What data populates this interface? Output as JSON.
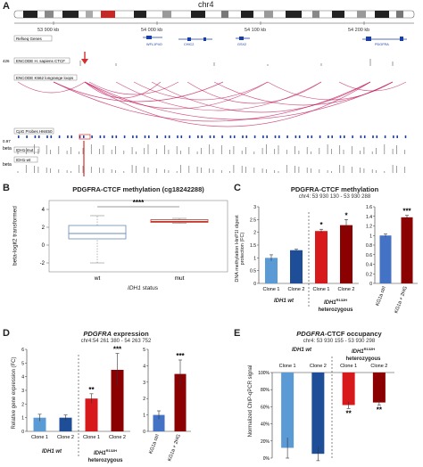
{
  "panel_a": {
    "letter": "A",
    "chromosome": "chr4",
    "coords": [
      "53 900 kb",
      "54 000 kb",
      "54 100 kb",
      "54 200 kb"
    ],
    "tracks": {
      "refseq": "Refseq Genes",
      "ctcf": "ENCODE H. sapiens CTCF",
      "loops": "ENCODE K562 longrange loops",
      "cpg": "CpG Probes HM450",
      "beta1": "beta",
      "idh1mut": "IDH1-mut",
      "beta2": "beta",
      "idh1wt": "IDH1-wt"
    },
    "scale_top": "426",
    "scale_beta": "0.97",
    "genes": [
      "WFL1P4O",
      "CHIC2",
      "GSX2",
      "PDGFRA"
    ]
  },
  "panel_b": {
    "letter": "B",
    "title": "PDGFRA-CTCF methylation (cg18242288)",
    "ylabel": "beta-logit2 transformed",
    "xlabel_gene": "IDH1",
    "xlabel_rest": " status",
    "significance": "****",
    "chart_data": {
      "type": "box",
      "categories": [
        "wt",
        "mut"
      ],
      "boxes": [
        {
          "name": "wt",
          "whisker_low": -2.0,
          "q1": 0.7,
          "median": 1.3,
          "q3": 2.2,
          "whisker_high": 3.3
        },
        {
          "name": "mut",
          "whisker_low": 2.45,
          "q1": 2.55,
          "median": 2.65,
          "q3": 2.85,
          "whisker_high": 3.0
        }
      ],
      "yticks": [
        -2,
        0,
        2,
        4
      ],
      "ylim": [
        -3,
        5
      ]
    }
  },
  "panel_c": {
    "letter": "C",
    "title": "PDGFRA-CTCF methylation",
    "subtitle": "chr4: 53 930 130 - 53 930 288",
    "ylabel": "DNA methylation HinP1I digest protection (FC)",
    "group_wt": "IDH1 wt",
    "group_mut_line1": "IDH1",
    "group_mut_sup": "R132H",
    "group_mut_line2": "heterozygous",
    "chart_data": {
      "type": "bar",
      "left": {
        "categories": [
          "Clone 1",
          "Clone 2",
          "Clone 1",
          "Clone 2"
        ],
        "values": [
          1.0,
          1.3,
          2.05,
          2.28
        ],
        "errors": [
          0.12,
          0.04,
          0.07,
          0.22
        ],
        "colors": [
          "#5b9bd5",
          "#1f4e99",
          "#d7191c",
          "#8b0000"
        ],
        "stars": [
          "",
          "",
          "*",
          "*"
        ],
        "yticks": [
          0,
          0.5,
          1,
          1.5,
          2,
          2.5,
          3
        ],
        "ylim": [
          0,
          3
        ]
      },
      "right": {
        "categories": [
          "KG1a ctrl",
          "KG1a + 2HG"
        ],
        "values": [
          1.0,
          1.38
        ],
        "errors": [
          0.03,
          0.04
        ],
        "colors": [
          "#4472c4",
          "#8b0000"
        ],
        "stars": [
          "",
          "***"
        ],
        "yticks": [
          0,
          0.2,
          0.4,
          0.6,
          0.8,
          1,
          1.2,
          1.4,
          1.6
        ],
        "ylim": [
          0,
          1.6
        ]
      }
    }
  },
  "panel_d": {
    "letter": "D",
    "title_gene": "PDGFRA",
    "title_rest": " expression",
    "subtitle": "chr4:54 261 380 - 54 263 752",
    "ylabel": "Relative gene expression (FC)",
    "group_wt": "IDH1 wt",
    "group_mut_line1": "IDH1",
    "group_mut_sup": "R132H",
    "group_mut_line2": "heterozygous",
    "chart_data": {
      "type": "bar",
      "left": {
        "categories": [
          "Clone 1",
          "Clone 2",
          "Clone 1",
          "Clone 2"
        ],
        "values": [
          1.0,
          1.0,
          2.4,
          4.5
        ],
        "errors": [
          0.25,
          0.2,
          0.35,
          1.2
        ],
        "colors": [
          "#5b9bd5",
          "#1f4e99",
          "#d7191c",
          "#8b0000"
        ],
        "stars": [
          "",
          "",
          "**",
          "***"
        ],
        "yticks": [
          0,
          1,
          2,
          3,
          4,
          5,
          6
        ],
        "ylim": [
          0,
          6
        ]
      },
      "right": {
        "categories": [
          "KG1a ctrl",
          "KG1a + 2HG"
        ],
        "values": [
          1.0,
          3.5
        ],
        "errors": [
          0.25,
          0.85
        ],
        "colors": [
          "#4472c4",
          "#8b0000"
        ],
        "stars": [
          "",
          "***"
        ],
        "yticks": [
          0,
          1,
          2,
          3,
          4,
          5
        ],
        "ylim": [
          0,
          5
        ]
      }
    }
  },
  "panel_e": {
    "letter": "E",
    "title_gene": "PDGFRA",
    "title_rest": "-CTCF occupancy",
    "subtitle": "chr4: 53 930 155 - 53 930 298",
    "ylabel": "Normalized ChIP-qPCR signal",
    "group_wt": "IDH1 wt",
    "group_mut_line1": "IDH1",
    "group_mut_sup": "R132H",
    "group_mut_line2": "heterozygous",
    "chart_data": {
      "type": "bar",
      "categories": [
        "Clone 1",
        "Clone 2",
        "Clone 1",
        "Clone 2"
      ],
      "values": [
        0.88,
        0.95,
        0.38,
        0.35
      ],
      "errors": [
        0.12,
        0.08,
        0.04,
        0.03
      ],
      "colors": [
        "#5b9bd5",
        "#1f4e99",
        "#d7191c",
        "#8b0000"
      ],
      "stars": [
        "",
        "",
        "**",
        "**"
      ],
      "yticks": [
        "0%",
        "20%",
        "40%",
        "60%",
        "80%",
        "100%"
      ],
      "ylim": [
        0,
        1
      ],
      "orientation": "inverted"
    }
  }
}
